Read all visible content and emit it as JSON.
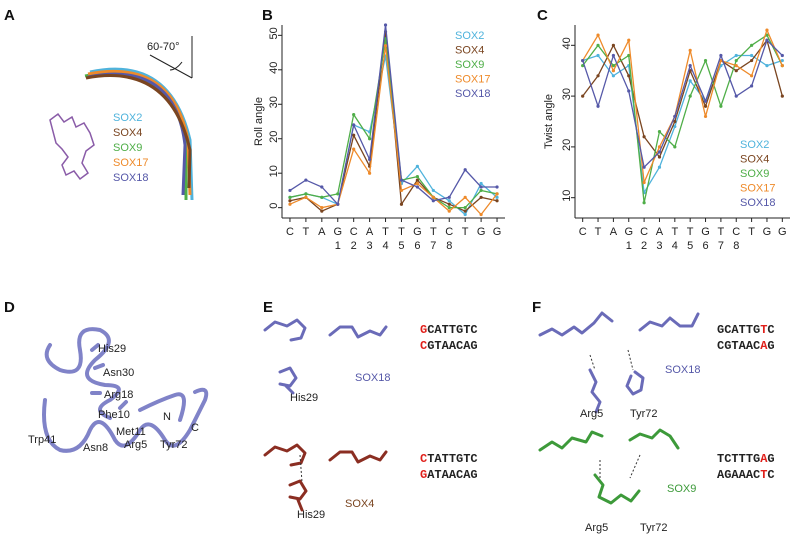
{
  "panel_labels": [
    "A",
    "B",
    "C",
    "D",
    "E",
    "F"
  ],
  "panel_a": {
    "angle": "60-70°",
    "legend": [
      "SOX2",
      "SOX4",
      "SOX9",
      "SOX17",
      "SOX18"
    ]
  },
  "chart_data": [
    {
      "type": "line",
      "y_label": "Roll angle",
      "categories": [
        "C",
        "T",
        "A",
        "G",
        "C",
        "A",
        "T",
        "T",
        "G",
        "T",
        "C",
        "T",
        "G",
        "G"
      ],
      "category_numbers": [
        null,
        null,
        null,
        1,
        2,
        3,
        4,
        5,
        6,
        7,
        8,
        null,
        null,
        null
      ],
      "ylim": [
        -3,
        53
      ],
      "yticks": [
        0,
        10,
        20,
        30,
        40,
        50
      ],
      "legend": "upper-right",
      "series": [
        {
          "name": "SOX2",
          "color": "#4fb3dc",
          "values": [
            3,
            4,
            3,
            1,
            24,
            22,
            44,
            7,
            12,
            5,
            2,
            -2,
            7,
            3
          ]
        },
        {
          "name": "SOX4",
          "color": "#7a4520",
          "values": [
            2,
            3,
            -1,
            1,
            21,
            12,
            51,
            1,
            8,
            3,
            1,
            -1,
            3,
            2
          ]
        },
        {
          "name": "SOX9",
          "color": "#4fae48",
          "values": [
            3,
            4,
            3,
            4,
            27,
            20,
            49,
            8,
            9,
            3,
            0,
            0,
            5,
            4
          ]
        },
        {
          "name": "SOX17",
          "color": "#ee8a2a",
          "values": [
            1,
            3,
            0,
            1,
            17,
            10,
            47,
            5,
            7,
            3,
            -1,
            3,
            -2,
            4
          ]
        },
        {
          "name": "SOX18",
          "color": "#5558a8",
          "values": [
            5,
            8,
            6,
            1,
            24,
            14,
            53,
            8,
            6,
            2,
            3,
            11,
            6,
            6
          ]
        }
      ]
    },
    {
      "type": "line",
      "y_label": "Twist angle",
      "categories": [
        "C",
        "T",
        "A",
        "G",
        "C",
        "A",
        "T",
        "T",
        "G",
        "T",
        "C",
        "T",
        "G",
        "G"
      ],
      "category_numbers": [
        null,
        null,
        null,
        1,
        2,
        3,
        4,
        5,
        6,
        7,
        8,
        null,
        null,
        null
      ],
      "ylim": [
        6,
        44
      ],
      "yticks": [
        10,
        20,
        30,
        40
      ],
      "legend": "lower-right",
      "series": [
        {
          "name": "SOX2",
          "color": "#4fb3dc",
          "values": [
            37,
            38,
            34,
            36,
            11,
            16,
            24,
            33,
            29,
            36,
            38,
            38,
            36,
            37
          ]
        },
        {
          "name": "SOX4",
          "color": "#7a4520",
          "values": [
            30,
            34,
            40,
            34,
            22,
            18,
            25,
            35,
            28,
            37,
            35,
            37,
            41,
            30
          ]
        },
        {
          "name": "SOX9",
          "color": "#4fae48",
          "values": [
            36,
            40,
            36,
            38,
            9,
            23,
            20,
            30,
            37,
            28,
            37,
            40,
            42,
            36
          ]
        },
        {
          "name": "SOX17",
          "color": "#ee8a2a",
          "values": [
            37,
            42,
            35,
            41,
            13,
            20,
            26,
            39,
            26,
            37,
            36,
            34,
            43,
            36
          ]
        },
        {
          "name": "SOX18",
          "color": "#5558a8",
          "values": [
            37,
            28,
            38,
            31,
            16,
            19,
            26,
            36,
            29,
            38,
            30,
            32,
            41,
            38
          ]
        }
      ]
    }
  ],
  "panel_d": {
    "labels": [
      "His29",
      "Asn30",
      "Arg18",
      "Phe10",
      "Met11",
      "N",
      "C",
      "Trp41",
      "Asn8",
      "Arg5",
      "Tyr72"
    ]
  },
  "panel_e": {
    "top": {
      "seq": [
        "GCATTGTC",
        "CGTAACAG"
      ],
      "red_positions": [
        0,
        0
      ],
      "protein": "SOX18",
      "residue": "His29"
    },
    "bottom": {
      "seq": [
        "CTATTGTC",
        "GATAACAG"
      ],
      "red_positions": [
        0,
        0
      ],
      "protein": "SOX4",
      "residue": "His29"
    }
  },
  "panel_f": {
    "top": {
      "seq": [
        "GCATTGTC",
        "CGTAACAG"
      ],
      "red_positions": [
        6,
        6
      ],
      "protein": "SOX18",
      "residues": [
        "Arg5",
        "Tyr72"
      ]
    },
    "bottom": {
      "seq": [
        "TCTTTGAG",
        "AGAAACTC"
      ],
      "red_positions": [
        6,
        6
      ],
      "protein": "SOX9",
      "residues": [
        "Arg5",
        "Tyr72"
      ]
    }
  }
}
